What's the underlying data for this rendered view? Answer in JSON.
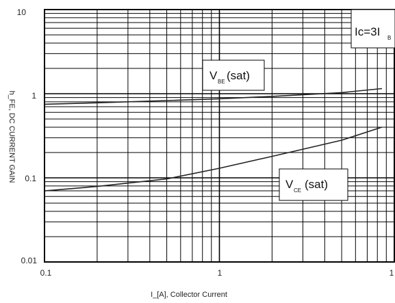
{
  "chart_data": {
    "type": "line",
    "x_scale": "log",
    "y_scale": "log",
    "xlim": [
      0.1,
      10
    ],
    "ylim": [
      0.01,
      10
    ],
    "x_ticks": [
      "0.1",
      "1",
      "1"
    ],
    "y_ticks": [
      "10",
      "1",
      "0.1",
      "0.01"
    ],
    "xlabel": "I_[A], Collector Current",
    "ylabel": "h_FE, DC CURRENT GAIN",
    "grid": true,
    "series": [
      {
        "name": "V_BE(sat)",
        "x": [
          0.1,
          0.2,
          0.5,
          1,
          2,
          5,
          8.5
        ],
        "y": [
          0.75,
          0.78,
          0.83,
          0.87,
          0.93,
          1.03,
          1.15
        ]
      },
      {
        "name": "V_CE(sat)",
        "x": [
          0.1,
          0.2,
          0.5,
          1,
          2,
          5,
          8.5
        ],
        "y": [
          0.07,
          0.079,
          0.097,
          0.13,
          0.18,
          0.28,
          0.4
        ]
      }
    ],
    "annotations": [
      {
        "main": "Ic=3I",
        "sub": "B"
      },
      {
        "main": "V",
        "sub": "BE",
        "tail": "(sat)"
      },
      {
        "main": "V",
        "sub": "CE",
        "tail": "(sat)"
      }
    ]
  }
}
